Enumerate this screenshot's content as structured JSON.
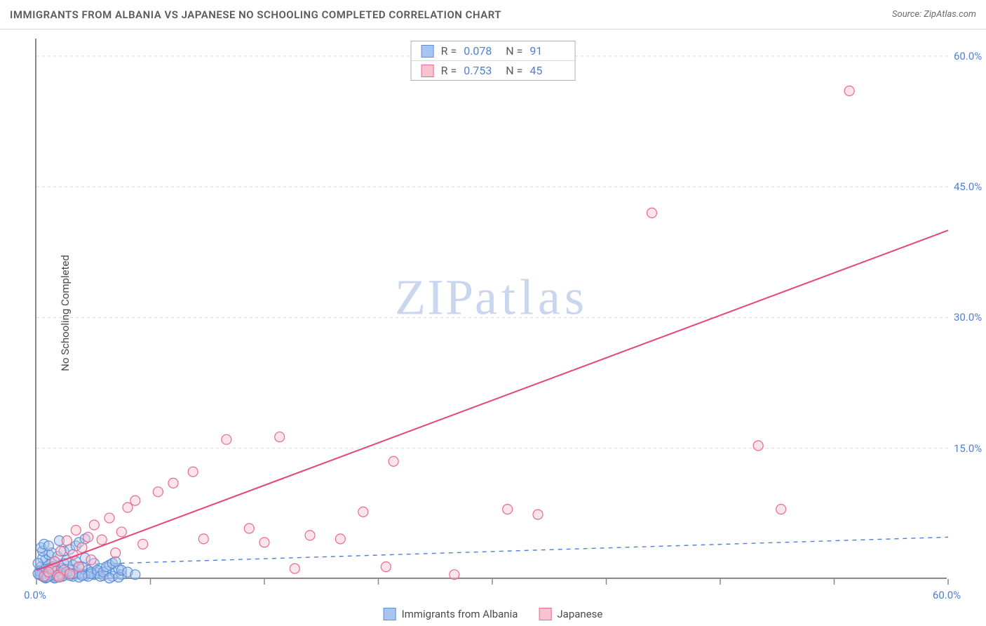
{
  "title": "IMMIGRANTS FROM ALBANIA VS JAPANESE NO SCHOOLING COMPLETED CORRELATION CHART",
  "source_label": "Source: ZipAtlas.com",
  "y_axis_label": "No Schooling Completed",
  "watermark_bold": "ZIP",
  "watermark_thin": "atlas",
  "chart": {
    "type": "scatter",
    "xlim": [
      0,
      60
    ],
    "ylim": [
      0,
      62
    ],
    "x_ticks": [
      0,
      7.5,
      15,
      22.5,
      30,
      37.5,
      45,
      52.5,
      60
    ],
    "x_tick_labels": {
      "0": "0.0%",
      "60": "60.0%"
    },
    "y_ticks": [
      15,
      30,
      45,
      60
    ],
    "y_tick_labels": {
      "15": "15.0%",
      "30": "30.0%",
      "45": "45.0%",
      "60": "60.0%"
    },
    "y_gridlines": [
      0,
      15,
      30,
      45,
      60
    ],
    "grid_color": "#d8d8d8",
    "grid_dash": "4,4",
    "background_color": "#ffffff",
    "marker_radius": 7,
    "marker_stroke_width": 1.2,
    "series": [
      {
        "name": "Immigrants from Albania",
        "fill_color": "#a8c4f0",
        "stroke_color": "#5b8fd6",
        "fill_opacity": 0.45,
        "r_value": "0.078",
        "n_value": "91",
        "trend": {
          "x1": 0,
          "y1": 1.5,
          "x2": 60,
          "y2": 4.8,
          "color": "#4f7fd6",
          "dash": "6,6",
          "width": 1.4
        },
        "points": [
          [
            0.3,
            0.4
          ],
          [
            0.5,
            0.2
          ],
          [
            0.4,
            0.8
          ],
          [
            0.6,
            0.3
          ],
          [
            0.8,
            0.6
          ],
          [
            0.2,
            0.5
          ],
          [
            1.0,
            0.3
          ],
          [
            0.7,
            1.0
          ],
          [
            1.2,
            0.4
          ],
          [
            0.9,
            0.7
          ],
          [
            1.1,
            0.2
          ],
          [
            0.5,
            1.2
          ],
          [
            1.4,
            0.5
          ],
          [
            0.3,
            1.4
          ],
          [
            1.6,
            0.8
          ],
          [
            0.8,
            1.6
          ],
          [
            1.8,
            0.4
          ],
          [
            1.0,
            1.8
          ],
          [
            2.0,
            0.6
          ],
          [
            1.2,
            2.0
          ],
          [
            2.2,
            1.0
          ],
          [
            0.6,
            2.2
          ],
          [
            2.4,
            0.3
          ],
          [
            1.6,
            1.2
          ],
          [
            2.6,
            0.8
          ],
          [
            0.4,
            2.4
          ],
          [
            2.8,
            1.4
          ],
          [
            1.4,
            0.2
          ],
          [
            3.0,
            0.6
          ],
          [
            1.8,
            1.8
          ],
          [
            3.2,
            0.4
          ],
          [
            2.0,
            2.2
          ],
          [
            0.2,
            0.9
          ],
          [
            3.4,
            1.0
          ],
          [
            2.2,
            0.4
          ],
          [
            3.6,
            0.8
          ],
          [
            0.8,
            2.8
          ],
          [
            1.0,
            3.0
          ],
          [
            2.4,
            1.6
          ],
          [
            3.8,
            0.5
          ],
          [
            2.6,
            2.0
          ],
          [
            0.6,
            0.1
          ],
          [
            4.0,
            0.7
          ],
          [
            2.8,
            0.2
          ],
          [
            4.2,
            1.2
          ],
          [
            1.2,
            0.1
          ],
          [
            0.4,
            3.2
          ],
          [
            3.0,
            1.4
          ],
          [
            4.4,
            0.4
          ],
          [
            3.2,
            2.4
          ],
          [
            1.6,
            0.6
          ],
          [
            4.6,
            0.9
          ],
          [
            3.4,
            0.3
          ],
          [
            0.1,
            1.8
          ],
          [
            4.8,
            1.6
          ],
          [
            1.4,
            2.6
          ],
          [
            3.6,
            0.6
          ],
          [
            5.0,
            0.3
          ],
          [
            3.8,
            1.8
          ],
          [
            0.9,
            0.4
          ],
          [
            5.2,
            0.7
          ],
          [
            2.0,
            0.8
          ],
          [
            1.8,
            3.2
          ],
          [
            4.0,
            1.0
          ],
          [
            0.7,
            0.2
          ],
          [
            5.4,
            1.2
          ],
          [
            4.2,
            0.3
          ],
          [
            2.2,
            3.4
          ],
          [
            1.1,
            1.4
          ],
          [
            4.4,
            0.8
          ],
          [
            0.3,
            3.6
          ],
          [
            5.6,
            0.5
          ],
          [
            2.4,
            0.6
          ],
          [
            4.6,
            1.4
          ],
          [
            0.5,
            4.0
          ],
          [
            2.6,
            3.8
          ],
          [
            4.8,
            0.1
          ],
          [
            1.3,
            0.9
          ],
          [
            5.0,
            1.8
          ],
          [
            2.8,
            4.2
          ],
          [
            0.8,
            3.8
          ],
          [
            5.2,
            2.0
          ],
          [
            3.0,
            0.4
          ],
          [
            1.5,
            4.4
          ],
          [
            5.4,
            0.2
          ],
          [
            0.1,
            0.6
          ],
          [
            3.2,
            4.6
          ],
          [
            5.6,
            1.0
          ],
          [
            1.7,
            0.3
          ],
          [
            6.0,
            0.8
          ],
          [
            6.5,
            0.5
          ]
        ]
      },
      {
        "name": "Japanese",
        "fill_color": "#f7c3d0",
        "stroke_color": "#e86a8f",
        "fill_opacity": 0.45,
        "r_value": "0.753",
        "n_value": "45",
        "trend": {
          "x1": 0,
          "y1": 1.0,
          "x2": 60,
          "y2": 40.0,
          "color": "#e64578",
          "dash": null,
          "width": 2.0
        },
        "points": [
          [
            0.5,
            0.3
          ],
          [
            1.0,
            1.2
          ],
          [
            1.2,
            2.0
          ],
          [
            1.4,
            0.4
          ],
          [
            1.6,
            3.2
          ],
          [
            1.8,
            1.0
          ],
          [
            2.0,
            4.4
          ],
          [
            2.2,
            0.6
          ],
          [
            2.4,
            2.8
          ],
          [
            2.6,
            5.6
          ],
          [
            2.8,
            1.4
          ],
          [
            3.0,
            3.6
          ],
          [
            3.4,
            4.8
          ],
          [
            3.6,
            2.2
          ],
          [
            3.8,
            6.2
          ],
          [
            4.3,
            4.5
          ],
          [
            4.8,
            7.0
          ],
          [
            5.2,
            3.0
          ],
          [
            5.6,
            5.4
          ],
          [
            6.0,
            8.2
          ],
          [
            6.5,
            9.0
          ],
          [
            7.0,
            4.0
          ],
          [
            8.0,
            10.0
          ],
          [
            9.0,
            11.0
          ],
          [
            10.3,
            12.3
          ],
          [
            11.0,
            4.6
          ],
          [
            12.5,
            16.0
          ],
          [
            14.0,
            5.8
          ],
          [
            15.0,
            4.2
          ],
          [
            16.0,
            16.3
          ],
          [
            17.0,
            1.2
          ],
          [
            18.0,
            5.0
          ],
          [
            20.0,
            4.6
          ],
          [
            21.5,
            7.7
          ],
          [
            23.0,
            1.4
          ],
          [
            23.5,
            13.5
          ],
          [
            27.5,
            0.5
          ],
          [
            31.0,
            8.0
          ],
          [
            33.0,
            7.4
          ],
          [
            40.5,
            42.0
          ],
          [
            47.5,
            15.3
          ],
          [
            49.0,
            8.0
          ],
          [
            53.5,
            56.0
          ],
          [
            1.5,
            0.2
          ],
          [
            0.8,
            0.8
          ]
        ]
      }
    ]
  },
  "bottom_legend": [
    {
      "label": "Immigrants from Albania",
      "fill": "#a8c4f0",
      "stroke": "#5b8fd6"
    },
    {
      "label": "Japanese",
      "fill": "#f7c3d0",
      "stroke": "#e86a8f"
    }
  ]
}
